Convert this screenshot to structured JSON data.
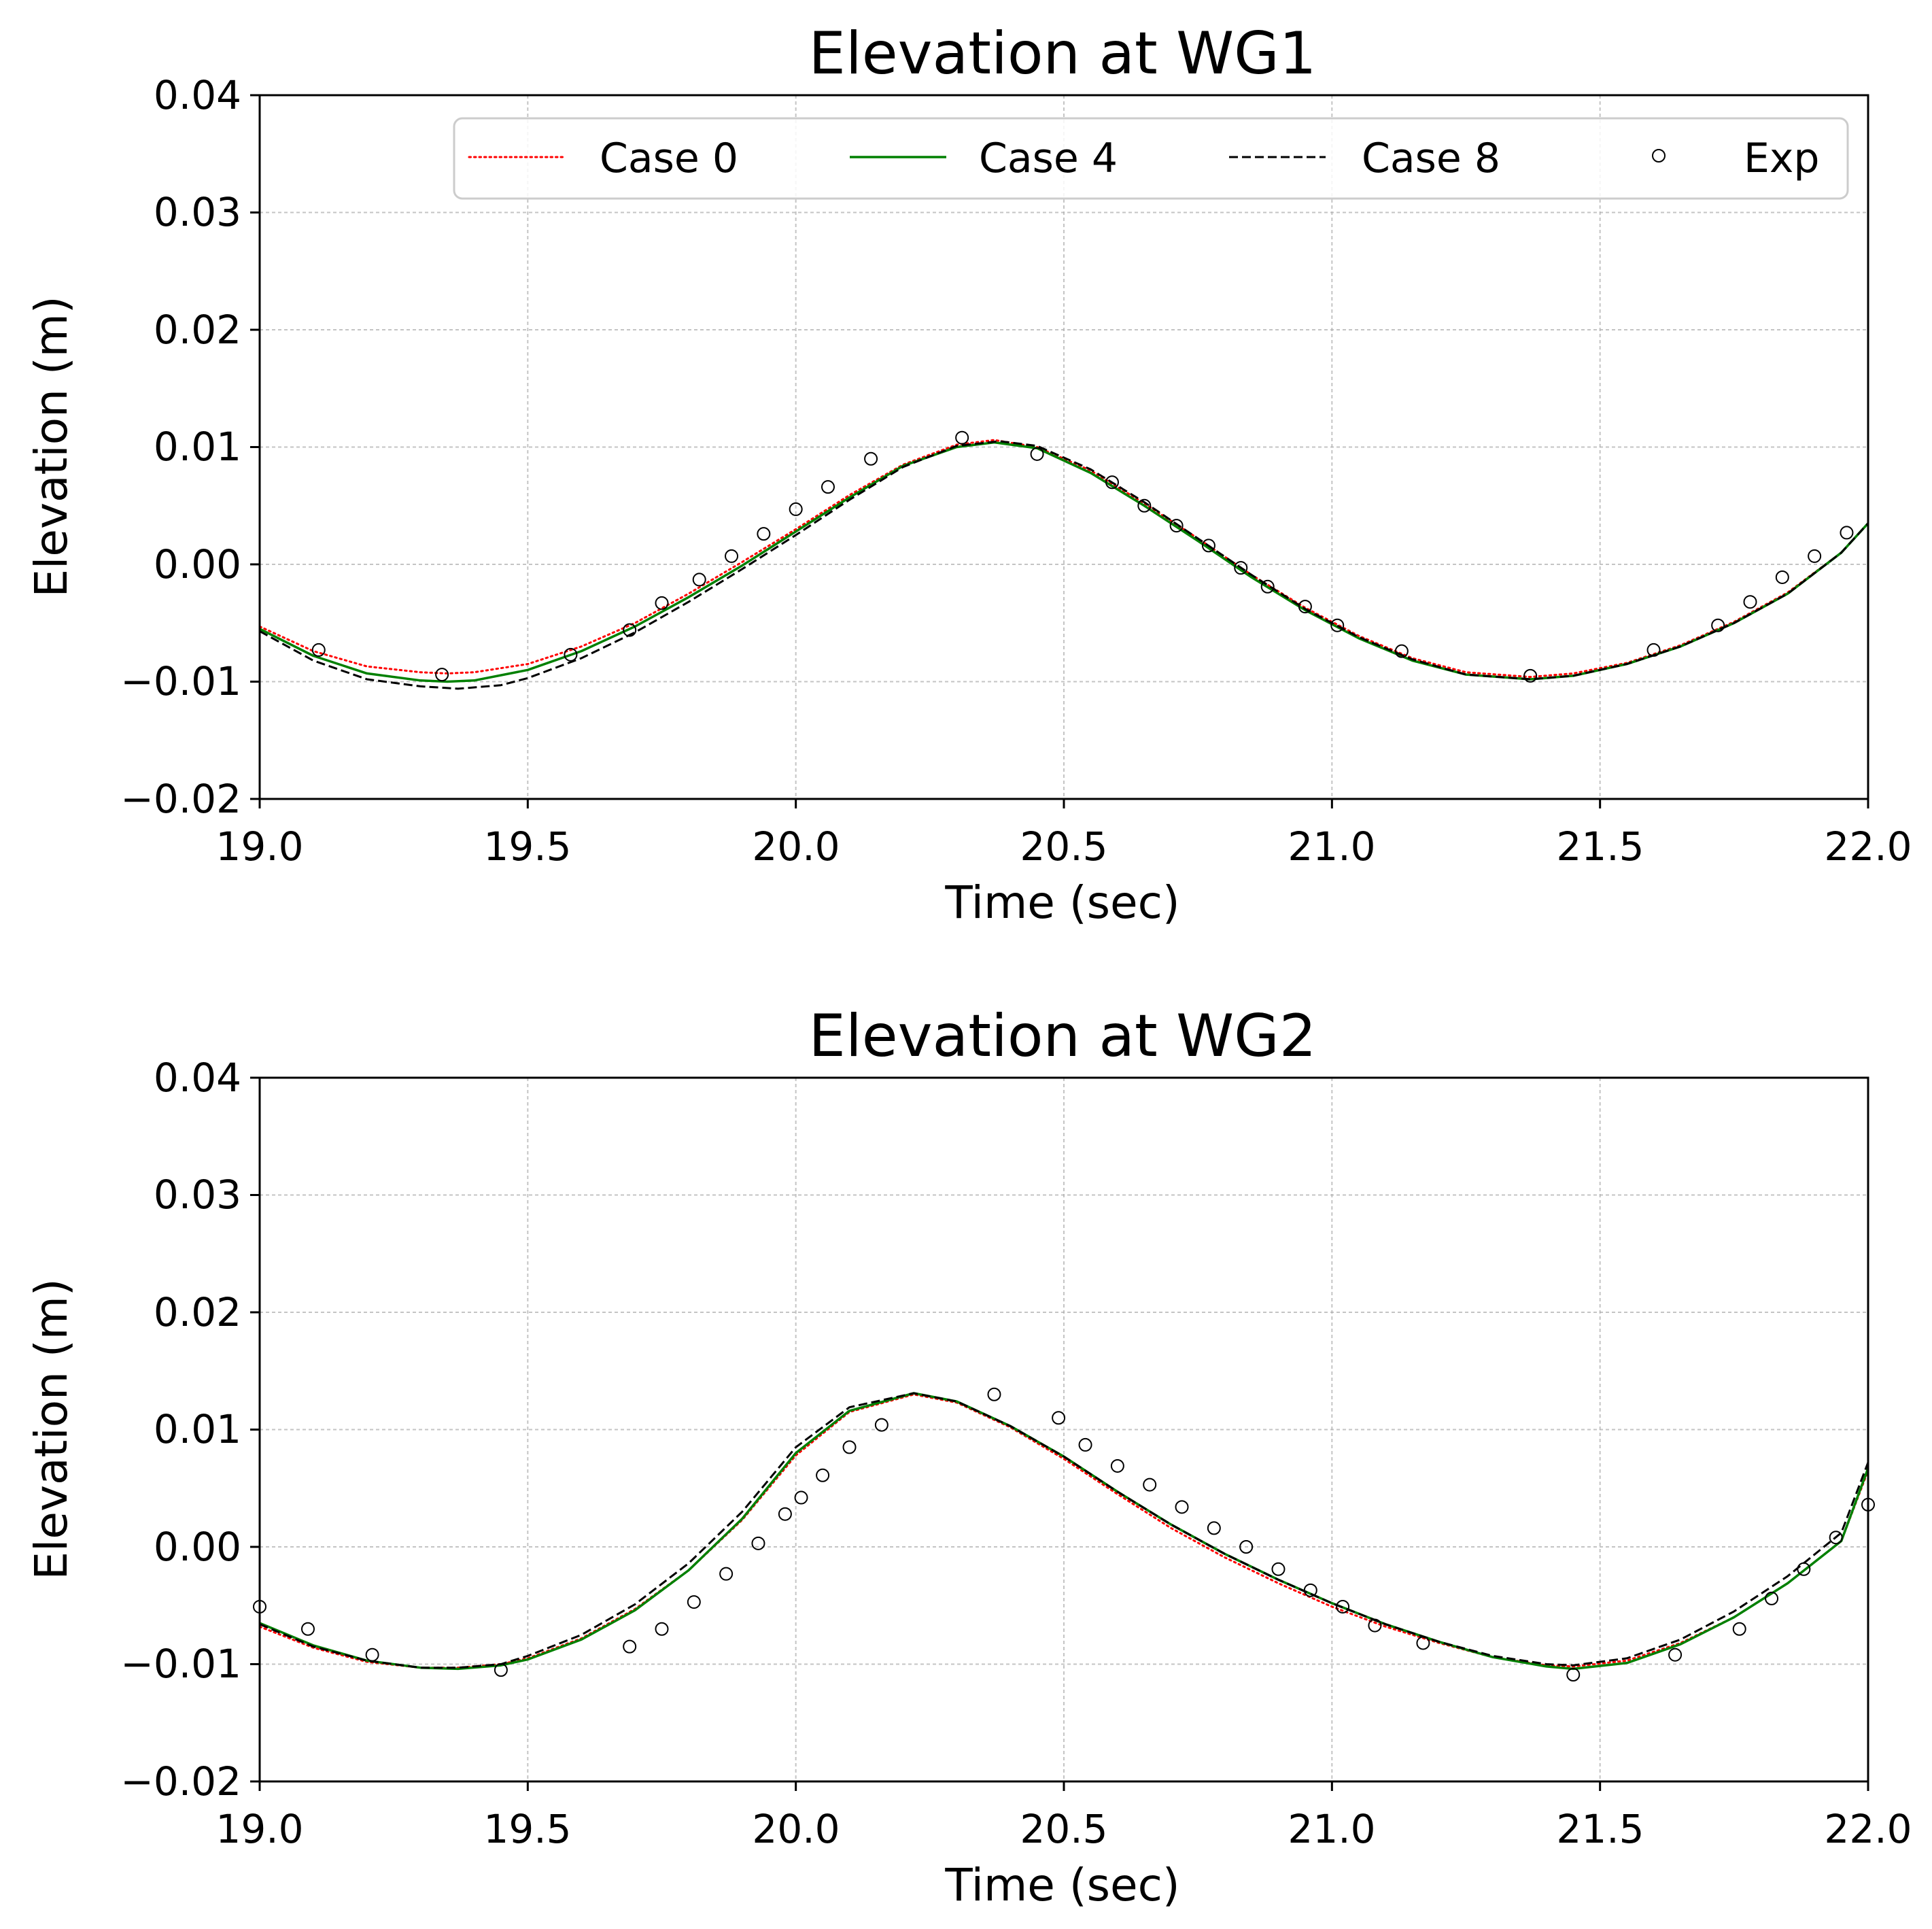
{
  "chart_data": [
    {
      "type": "line",
      "title": "Elevation at WG1",
      "xlabel": "Time (sec)",
      "ylabel": "Elevation (m)",
      "xlim": [
        19.0,
        22.0
      ],
      "ylim": [
        -0.02,
        0.04
      ],
      "xticks": [
        19.0,
        19.5,
        20.0,
        20.5,
        21.0,
        21.5,
        22.0
      ],
      "xtick_labels": [
        "19.0",
        "19.5",
        "20.0",
        "20.5",
        "21.0",
        "21.5",
        "22.0"
      ],
      "yticks": [
        -0.02,
        -0.01,
        0.0,
        0.01,
        0.02,
        0.03,
        0.04
      ],
      "ytick_labels": [
        "−0.02",
        "−0.01",
        "0.00",
        "0.01",
        "0.02",
        "0.03",
        "0.04"
      ],
      "grid": true,
      "legend": {
        "placement": "top-right",
        "entries": [
          "Case 0",
          "Case 4",
          "Case 8",
          "Exp"
        ]
      },
      "series": [
        {
          "name": "Case 0",
          "style": "dotted",
          "color": "#ff0000",
          "x": [
            19.0,
            19.1,
            19.2,
            19.3,
            19.35,
            19.4,
            19.5,
            19.6,
            19.7,
            19.8,
            19.9,
            20.0,
            20.1,
            20.2,
            20.3,
            20.37,
            20.45,
            20.55,
            20.65,
            20.75,
            20.85,
            20.95,
            21.05,
            21.15,
            21.25,
            21.37,
            21.45,
            21.55,
            21.65,
            21.75,
            21.85,
            21.95,
            22.0
          ],
          "y": [
            -0.0053,
            -0.0074,
            -0.0087,
            -0.0092,
            -0.0093,
            -0.0092,
            -0.0085,
            -0.007,
            -0.005,
            -0.0025,
            0.0002,
            0.003,
            0.0059,
            0.0085,
            0.0102,
            0.0106,
            0.01,
            0.008,
            0.0052,
            0.0022,
            -0.0009,
            -0.0037,
            -0.0061,
            -0.008,
            -0.0092,
            -0.0096,
            -0.0093,
            -0.0084,
            -0.0069,
            -0.0049,
            -0.0024,
            0.001,
            0.0035
          ]
        },
        {
          "name": "Case 4",
          "style": "solid",
          "color": "#008000",
          "x": [
            19.0,
            19.1,
            19.2,
            19.3,
            19.35,
            19.4,
            19.5,
            19.6,
            19.7,
            19.8,
            19.9,
            20.0,
            20.1,
            20.2,
            20.3,
            20.37,
            20.45,
            20.55,
            20.65,
            20.75,
            20.85,
            20.95,
            21.05,
            21.15,
            21.25,
            21.37,
            21.45,
            21.55,
            21.65,
            21.75,
            21.85,
            21.95,
            22.0
          ],
          "y": [
            -0.0055,
            -0.0078,
            -0.0093,
            -0.0099,
            -0.01,
            -0.0099,
            -0.009,
            -0.0074,
            -0.0053,
            -0.0028,
            -0.0001,
            0.0028,
            0.0057,
            0.0084,
            0.01,
            0.0104,
            0.0099,
            0.0078,
            0.005,
            0.002,
            -0.0011,
            -0.0039,
            -0.0063,
            -0.0082,
            -0.0094,
            -0.0098,
            -0.0095,
            -0.0085,
            -0.007,
            -0.005,
            -0.0025,
            0.001,
            0.0035
          ]
        },
        {
          "name": "Case 8",
          "style": "dashed",
          "color": "#000000",
          "x": [
            19.0,
            19.1,
            19.2,
            19.3,
            19.37,
            19.45,
            19.5,
            19.6,
            19.7,
            19.8,
            19.9,
            20.0,
            20.1,
            20.2,
            20.3,
            20.38,
            20.45,
            20.55,
            20.65,
            20.75,
            20.85,
            20.95,
            21.05,
            21.15,
            21.25,
            21.37,
            21.45,
            21.55,
            21.65,
            21.75,
            21.85,
            21.95,
            22.0
          ],
          "y": [
            -0.0057,
            -0.0082,
            -0.0098,
            -0.0104,
            -0.0106,
            -0.0103,
            -0.0097,
            -0.008,
            -0.0058,
            -0.0032,
            -0.0004,
            0.0025,
            0.0055,
            0.0083,
            0.0101,
            0.0105,
            0.0101,
            0.0081,
            0.0053,
            0.0022,
            -0.0009,
            -0.0038,
            -0.0062,
            -0.0081,
            -0.0094,
            -0.0098,
            -0.0095,
            -0.0085,
            -0.007,
            -0.005,
            -0.0025,
            0.001,
            0.0035
          ]
        },
        {
          "name": "Exp",
          "style": "markers",
          "color": "#000000",
          "x": [
            19.11,
            19.34,
            19.58,
            19.69,
            19.75,
            19.82,
            19.88,
            19.94,
            20.0,
            20.06,
            20.14,
            20.31,
            20.45,
            20.59,
            20.65,
            20.71,
            20.77,
            20.83,
            20.88,
            20.95,
            21.01,
            21.13,
            21.37,
            21.6,
            21.72,
            21.78,
            21.84,
            21.9,
            21.96
          ],
          "y": [
            -0.0073,
            -0.0094,
            -0.0077,
            -0.0056,
            -0.0033,
            -0.0013,
            0.0007,
            0.0026,
            0.0047,
            0.0066,
            0.009,
            0.0108,
            0.0094,
            0.007,
            0.005,
            0.0033,
            0.0016,
            -0.0003,
            -0.0019,
            -0.0036,
            -0.0052,
            -0.0074,
            -0.0095,
            -0.0073,
            -0.0052,
            -0.0032,
            -0.0011,
            0.0007,
            0.0027
          ]
        }
      ]
    },
    {
      "type": "line",
      "title": "Elevation at WG2",
      "xlabel": "Time (sec)",
      "ylabel": "Elevation (m)",
      "xlim": [
        19.0,
        22.0
      ],
      "ylim": [
        -0.02,
        0.04
      ],
      "xticks": [
        19.0,
        19.5,
        20.0,
        20.5,
        21.0,
        21.5,
        22.0
      ],
      "xtick_labels": [
        "19.0",
        "19.5",
        "20.0",
        "20.5",
        "21.0",
        "21.5",
        "22.0"
      ],
      "yticks": [
        -0.02,
        -0.01,
        0.0,
        0.01,
        0.02,
        0.03,
        0.04
      ],
      "ytick_labels": [
        "−0.02",
        "−0.01",
        "0.00",
        "0.01",
        "0.02",
        "0.03",
        "0.04"
      ],
      "grid": true,
      "series": [
        {
          "name": "Case 0",
          "style": "dotted",
          "color": "#ff0000",
          "x": [
            19.0,
            19.1,
            19.2,
            19.3,
            19.37,
            19.45,
            19.5,
            19.6,
            19.7,
            19.8,
            19.9,
            20.0,
            20.1,
            20.22,
            20.3,
            20.4,
            20.5,
            20.6,
            20.7,
            20.8,
            20.9,
            21.0,
            21.1,
            21.2,
            21.3,
            21.4,
            21.45,
            21.55,
            21.65,
            21.75,
            21.85,
            21.95,
            22.0
          ],
          "y": [
            -0.0068,
            -0.0086,
            -0.0098,
            -0.0103,
            -0.0103,
            -0.01,
            -0.0095,
            -0.0078,
            -0.0053,
            -0.002,
            0.0023,
            0.0078,
            0.0115,
            0.013,
            0.0123,
            0.0102,
            0.0075,
            0.0045,
            0.0016,
            -0.0009,
            -0.0031,
            -0.0051,
            -0.0068,
            -0.0082,
            -0.0094,
            -0.0101,
            -0.0102,
            -0.0097,
            -0.0082,
            -0.006,
            -0.0031,
            0.0005,
            0.0065
          ]
        },
        {
          "name": "Case 4",
          "style": "solid",
          "color": "#008000",
          "x": [
            19.0,
            19.1,
            19.2,
            19.3,
            19.37,
            19.45,
            19.5,
            19.6,
            19.7,
            19.8,
            19.9,
            20.0,
            20.1,
            20.22,
            20.3,
            20.4,
            20.5,
            20.6,
            20.7,
            20.8,
            20.9,
            21.0,
            21.1,
            21.2,
            21.3,
            21.4,
            21.45,
            21.55,
            21.65,
            21.75,
            21.85,
            21.95,
            22.0
          ],
          "y": [
            -0.0065,
            -0.0084,
            -0.0097,
            -0.0103,
            -0.0104,
            -0.0101,
            -0.0096,
            -0.0079,
            -0.0054,
            -0.002,
            0.0024,
            0.008,
            0.0116,
            0.0131,
            0.0124,
            0.0103,
            0.0077,
            0.0047,
            0.0019,
            -0.0006,
            -0.0028,
            -0.0048,
            -0.0066,
            -0.0081,
            -0.0094,
            -0.0102,
            -0.0104,
            -0.0099,
            -0.0083,
            -0.006,
            -0.0031,
            0.0005,
            0.0067
          ]
        },
        {
          "name": "Case 8",
          "style": "dashed",
          "color": "#000000",
          "x": [
            19.0,
            19.1,
            19.2,
            19.3,
            19.37,
            19.45,
            19.5,
            19.6,
            19.7,
            19.8,
            19.9,
            20.0,
            20.1,
            20.22,
            20.3,
            20.4,
            20.5,
            20.6,
            20.7,
            20.8,
            20.9,
            21.0,
            21.1,
            21.2,
            21.3,
            21.4,
            21.45,
            21.55,
            21.65,
            21.75,
            21.85,
            21.95,
            22.0
          ],
          "y": [
            -0.0066,
            -0.0085,
            -0.0097,
            -0.0103,
            -0.0103,
            -0.01,
            -0.0093,
            -0.0075,
            -0.0049,
            -0.0014,
            0.003,
            0.0085,
            0.0119,
            0.0131,
            0.0124,
            0.0103,
            0.0077,
            0.0047,
            0.0019,
            -0.0006,
            -0.0028,
            -0.0048,
            -0.0066,
            -0.0081,
            -0.0093,
            -0.01,
            -0.0101,
            -0.0095,
            -0.0079,
            -0.0055,
            -0.0025,
            0.0012,
            0.0072
          ]
        },
        {
          "name": "Exp",
          "style": "markers",
          "color": "#000000",
          "x": [
            19.0,
            19.09,
            19.21,
            19.45,
            19.69,
            19.75,
            19.81,
            19.87,
            19.93,
            19.98,
            20.01,
            20.05,
            20.1,
            20.16,
            20.37,
            20.49,
            20.54,
            20.6,
            20.66,
            20.72,
            20.78,
            20.84,
            20.9,
            20.96,
            21.02,
            21.08,
            21.17,
            21.45,
            21.64,
            21.76,
            21.82,
            21.88,
            21.94,
            22.0
          ],
          "y": [
            -0.0051,
            -0.007,
            -0.0092,
            -0.0105,
            -0.0085,
            -0.007,
            -0.0047,
            -0.0023,
            0.0003,
            0.0028,
            0.0042,
            0.0061,
            0.0085,
            0.0104,
            0.013,
            0.011,
            0.0087,
            0.0069,
            0.0053,
            0.0034,
            0.0016,
            0.0,
            -0.0019,
            -0.0037,
            -0.0051,
            -0.0067,
            -0.0082,
            -0.0109,
            -0.0092,
            -0.007,
            -0.0044,
            -0.0019,
            0.0008,
            0.0036
          ]
        }
      ]
    }
  ]
}
